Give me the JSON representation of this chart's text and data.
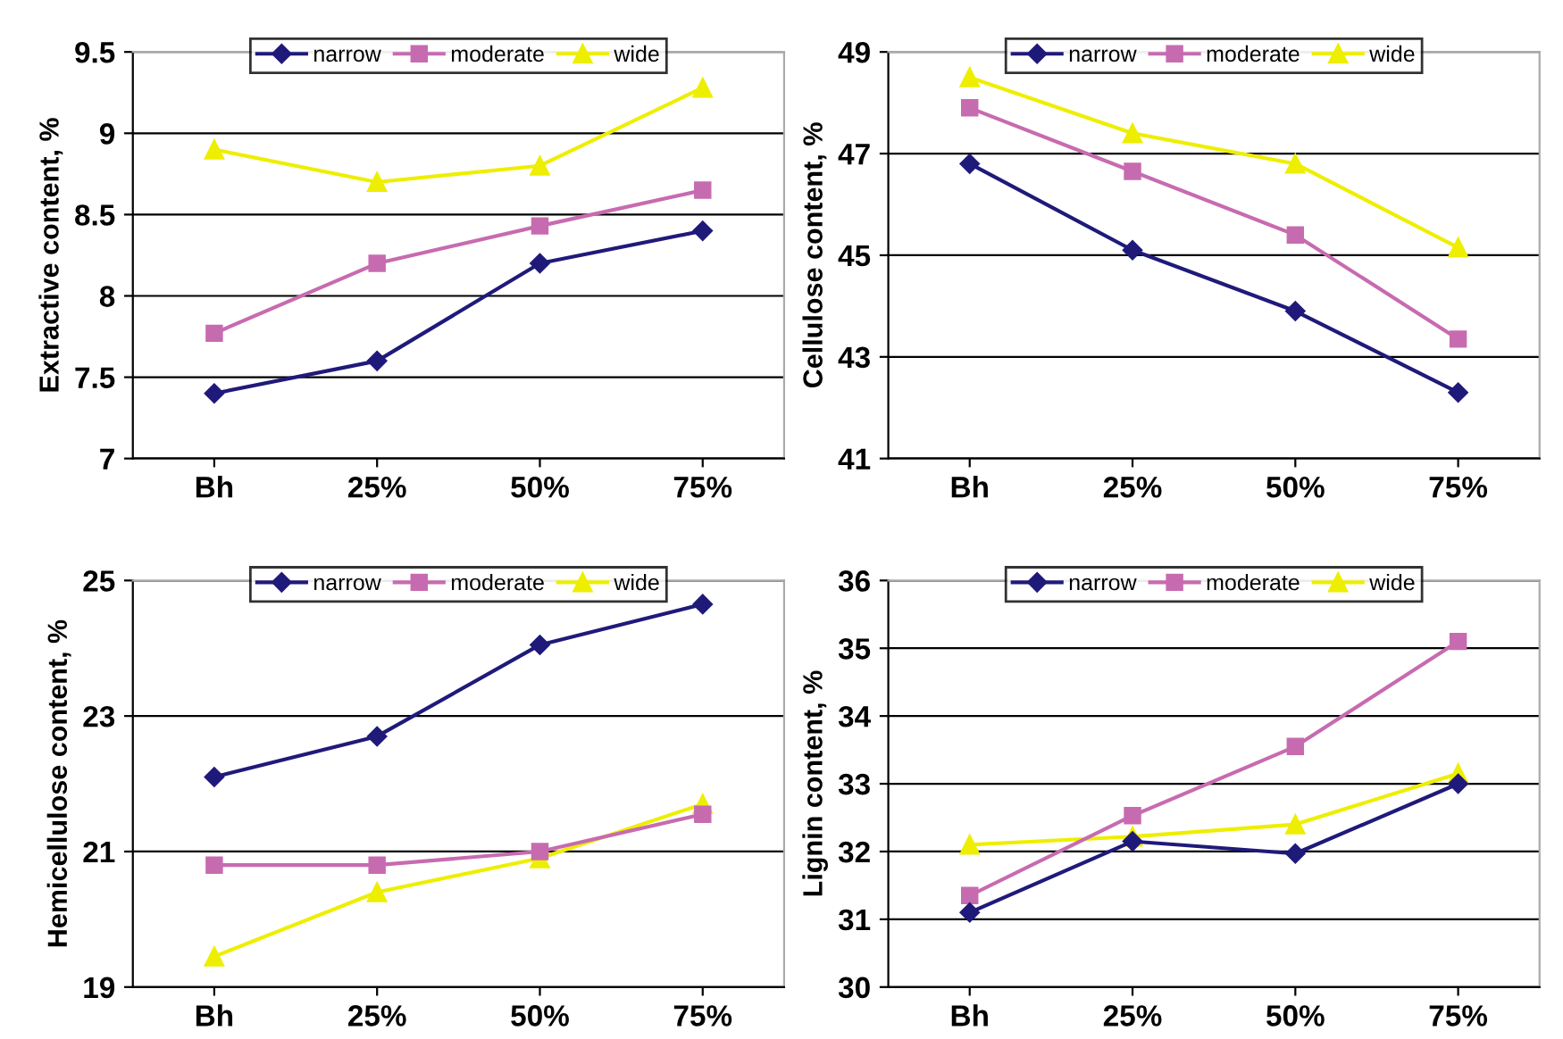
{
  "chart_data": [
    {
      "type": "line",
      "ylabel": "Extractive content, %",
      "categories": [
        "Bh",
        "25%",
        "50%",
        "75%"
      ],
      "ylim": [
        7,
        9.5
      ],
      "yticks": [
        7,
        7.5,
        8,
        8.5,
        9,
        9.5
      ],
      "grid": "y",
      "legend": "top",
      "series": [
        {
          "name": "narrow",
          "color": "#1f1a7a",
          "marker": "diamond",
          "values": [
            7.4,
            7.6,
            8.2,
            8.4
          ]
        },
        {
          "name": "moderate",
          "color": "#c76bb0",
          "marker": "square",
          "values": [
            7.77,
            8.2,
            8.43,
            8.65
          ]
        },
        {
          "name": "wide",
          "color": "#eeee00",
          "marker": "triangle",
          "values": [
            8.9,
            8.7,
            8.8,
            9.28
          ]
        }
      ]
    },
    {
      "type": "line",
      "ylabel": "Cellulose content, %",
      "categories": [
        "Bh",
        "25%",
        "50%",
        "75%"
      ],
      "ylim": [
        41,
        49
      ],
      "yticks": [
        41,
        43,
        45,
        47,
        49
      ],
      "grid": "y",
      "legend": "top",
      "series": [
        {
          "name": "narrow",
          "color": "#1f1a7a",
          "marker": "diamond",
          "values": [
            46.8,
            45.1,
            43.9,
            42.3
          ]
        },
        {
          "name": "moderate",
          "color": "#c76bb0",
          "marker": "square",
          "values": [
            47.9,
            46.65,
            45.4,
            43.35
          ]
        },
        {
          "name": "wide",
          "color": "#eeee00",
          "marker": "triangle",
          "values": [
            48.5,
            47.4,
            46.8,
            45.15
          ]
        }
      ]
    },
    {
      "type": "line",
      "ylabel": "Hemicellulose content, %",
      "categories": [
        "Bh",
        "25%",
        "50%",
        "75%"
      ],
      "ylim": [
        19,
        25
      ],
      "yticks": [
        19,
        21,
        23,
        25
      ],
      "grid": "y",
      "legend": "top",
      "series": [
        {
          "name": "narrow",
          "color": "#1f1a7a",
          "marker": "diamond",
          "values": [
            22.1,
            22.7,
            24.05,
            24.65
          ]
        },
        {
          "name": "moderate",
          "color": "#c76bb0",
          "marker": "square",
          "values": [
            20.8,
            20.8,
            21.0,
            21.55
          ]
        },
        {
          "name": "wide",
          "color": "#eeee00",
          "marker": "triangle",
          "values": [
            19.45,
            20.4,
            20.9,
            21.7
          ]
        }
      ]
    },
    {
      "type": "line",
      "ylabel": "Lignin content, %",
      "categories": [
        "Bh",
        "25%",
        "50%",
        "75%"
      ],
      "ylim": [
        30,
        36
      ],
      "yticks": [
        30,
        31,
        32,
        33,
        34,
        35,
        36
      ],
      "grid": "y",
      "legend": "top",
      "series": [
        {
          "name": "narrow",
          "color": "#1f1a7a",
          "marker": "diamond",
          "values": [
            31.1,
            32.15,
            31.97,
            33.0
          ]
        },
        {
          "name": "moderate",
          "color": "#c76bb0",
          "marker": "square",
          "values": [
            31.35,
            32.53,
            33.55,
            35.1
          ]
        },
        {
          "name": "wide",
          "color": "#eeee00",
          "marker": "triangle",
          "values": [
            32.1,
            32.22,
            32.4,
            33.15
          ]
        }
      ]
    }
  ]
}
